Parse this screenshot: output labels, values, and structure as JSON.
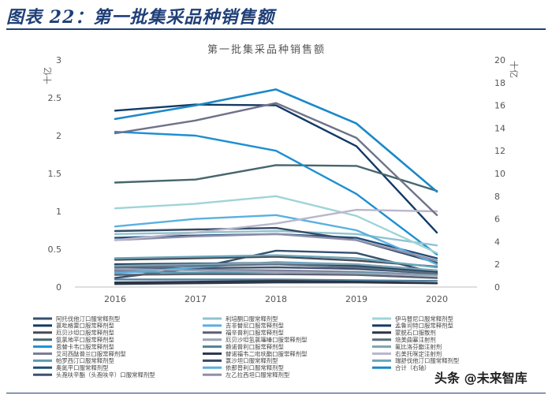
{
  "header": {
    "figure_title": "图表 22：第一批集采品种销售额"
  },
  "watermark": {
    "text": "头条 @未来智库"
  },
  "chart_data": {
    "type": "line",
    "title": "第一批集采品种销售额",
    "ylabel_left": "十亿",
    "ylabel_right": "十亿",
    "ylim_left": [
      0,
      3
    ],
    "yticks_left": [
      "0",
      "0.5",
      "1",
      "1.5",
      "2",
      "2.5",
      "3"
    ],
    "ylim_right": [
      0,
      20
    ],
    "yticks_right": [
      "0",
      "2",
      "4",
      "6",
      "8",
      "10",
      "12",
      "14",
      "16",
      "18",
      "20"
    ],
    "x": [
      "2016",
      "2017",
      "2018",
      "2019",
      "2020"
    ],
    "series": [
      {
        "name": "阿托伐他汀口服常释剂型",
        "color": "#35506e",
        "values": [
          0.12,
          0.25,
          0.48,
          0.45,
          0.18
        ]
      },
      {
        "name": "氯吡格雷口服常释剂型",
        "color": "#123a66",
        "values": [
          2.33,
          2.41,
          2.4,
          1.86,
          0.72
        ]
      },
      {
        "name": "厄贝沙坦口服常释剂型",
        "color": "#4a4a55",
        "values": [
          0.36,
          0.38,
          0.4,
          0.35,
          0.27
        ]
      },
      {
        "name": "氨氯地平口服常释剂型",
        "color": "#46666d",
        "values": [
          1.38,
          1.42,
          1.61,
          1.6,
          1.27
        ]
      },
      {
        "name": "恩替卡韦口服常释剂型",
        "color": "#1e8fd2",
        "values": [
          2.05,
          2.0,
          1.8,
          1.23,
          0.43
        ]
      },
      {
        "name": "艾司西酞普兰口服常释剂型",
        "color": "#7b7b98",
        "values": [
          0.22,
          0.23,
          0.22,
          0.2,
          0.16
        ]
      },
      {
        "name": "帕罗西汀口服常释剂型",
        "color": "#5b9bb0",
        "values": [
          0.2,
          0.19,
          0.2,
          0.19,
          0.16
        ]
      },
      {
        "name": "奥氮平口服常释剂型",
        "color": "#1f4e79",
        "values": [
          0.65,
          0.68,
          0.7,
          0.65,
          0.38
        ]
      },
      {
        "name": "头孢呋辛酯（头孢呋辛）口服常释剂型",
        "color": "#3f5170",
        "values": [
          0.24,
          0.25,
          0.26,
          0.24,
          0.18
        ]
      },
      {
        "name": "利培酮口服常释剂型",
        "color": "#8fc3cf",
        "values": [
          0.7,
          0.72,
          0.74,
          0.7,
          0.55
        ]
      },
      {
        "name": "吉非替尼口服常释剂型",
        "color": "#5aaee0",
        "values": [
          0.18,
          0.26,
          0.33,
          0.3,
          0.22
        ]
      },
      {
        "name": "福辛普利口服常释剂型",
        "color": "#5c6070",
        "values": [
          0.16,
          0.17,
          0.17,
          0.16,
          0.12
        ]
      },
      {
        "name": "厄贝沙坦氢氯噻嗪口服常释剂型",
        "color": "#9aa3b5",
        "values": [
          0.24,
          0.22,
          0.2,
          0.18,
          0.15
        ]
      },
      {
        "name": "赖诺普利口服常释剂型",
        "color": "#4f7fa0",
        "values": [
          0.1,
          0.1,
          0.1,
          0.09,
          0.08
        ]
      },
      {
        "name": "替诺福韦二吡呋酯口服常释剂型",
        "color": "#2c3a4e",
        "values": [
          0.04,
          0.05,
          0.06,
          0.06,
          0.05
        ]
      },
      {
        "name": "氯沙坦口服常释剂型",
        "color": "#354a63",
        "values": [
          0.74,
          0.76,
          0.78,
          0.62,
          0.32
        ]
      },
      {
        "name": "依那普利口服常释剂型",
        "color": "#5ab0e0",
        "values": [
          0.8,
          0.9,
          0.95,
          0.75,
          0.3
        ]
      },
      {
        "name": "左乙拉西坦口服常释剂型",
        "color": "#8f8faa",
        "values": [
          0.62,
          0.67,
          0.7,
          0.62,
          0.35
        ]
      },
      {
        "name": "伊马替尼口服常释剂型",
        "color": "#9fd4d8",
        "values": [
          1.04,
          1.1,
          1.2,
          0.94,
          0.45
        ]
      },
      {
        "name": "孟鲁司特口服常释剂型",
        "color": "#163c5e",
        "values": [
          0.3,
          0.31,
          0.32,
          0.28,
          0.2
        ]
      },
      {
        "name": "蒙脱石口服散剂",
        "color": "#2d3440",
        "values": [
          0.06,
          0.07,
          0.08,
          0.07,
          0.05
        ]
      },
      {
        "name": "培美曲塞注射剂",
        "color": "#5b6e7e",
        "values": [
          0.26,
          0.28,
          0.3,
          0.26,
          0.18
        ]
      },
      {
        "name": "氟比洛芬酯注射剂",
        "color": "#7fa2b2",
        "values": [
          0.28,
          0.3,
          0.32,
          0.3,
          0.22
        ]
      },
      {
        "name": "右美托咪定注射剂",
        "color": "#b9b7cc",
        "values": [
          0.62,
          0.72,
          0.84,
          1.02,
          1.0
        ]
      },
      {
        "name": "瑞舒伐他汀口服常释剂型",
        "color": "#6aa6ba",
        "values": [
          0.38,
          0.4,
          0.42,
          0.38,
          0.26
        ]
      },
      {
        "name": "合计（右轴）",
        "color": "#1b88c8",
        "axis": "right",
        "values": [
          14.8,
          16.0,
          17.4,
          14.4,
          8.4
        ]
      },
      {
        "name": "",
        "color": "#6f7288",
        "values": [
          2.03,
          2.2,
          2.43,
          1.97,
          0.95
        ]
      }
    ]
  }
}
